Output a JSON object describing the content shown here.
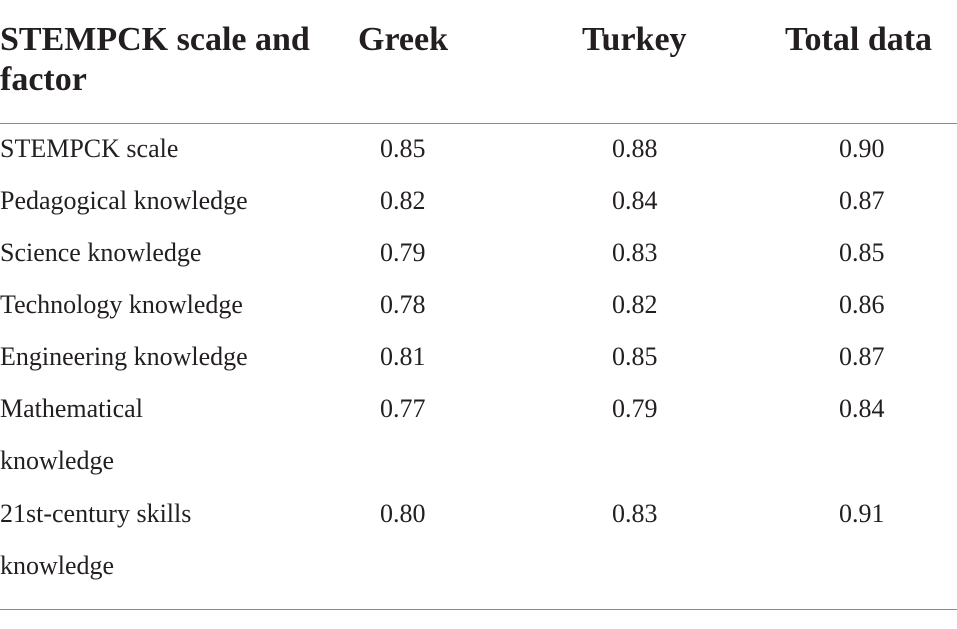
{
  "table": {
    "headers": {
      "factor": "STEMPCK scale and factor",
      "greek": "Greek",
      "turkey": "Turkey",
      "total": "Total data"
    },
    "rows": [
      {
        "factor": "STEMPCK scale",
        "greek": "0.85",
        "turkey": "0.88",
        "total": "0.90"
      },
      {
        "factor": "Pedagogical knowledge",
        "greek": "0.82",
        "turkey": "0.84",
        "total": "0.87"
      },
      {
        "factor": "Science knowledge",
        "greek": "0.79",
        "turkey": "0.83",
        "total": "0.85"
      },
      {
        "factor": "Technology knowledge",
        "greek": "0.78",
        "turkey": "0.82",
        "total": "0.86"
      },
      {
        "factor": "Engineering knowledge",
        "greek": "0.81",
        "turkey": "0.85",
        "total": "0.87"
      },
      {
        "factor": "Mathematical knowledge",
        "greek": "0.77",
        "turkey": "0.79",
        "total": "0.84"
      },
      {
        "factor": "21st-century skills knowledge",
        "greek": "0.80",
        "turkey": "0.83",
        "total": "0.91"
      }
    ]
  }
}
